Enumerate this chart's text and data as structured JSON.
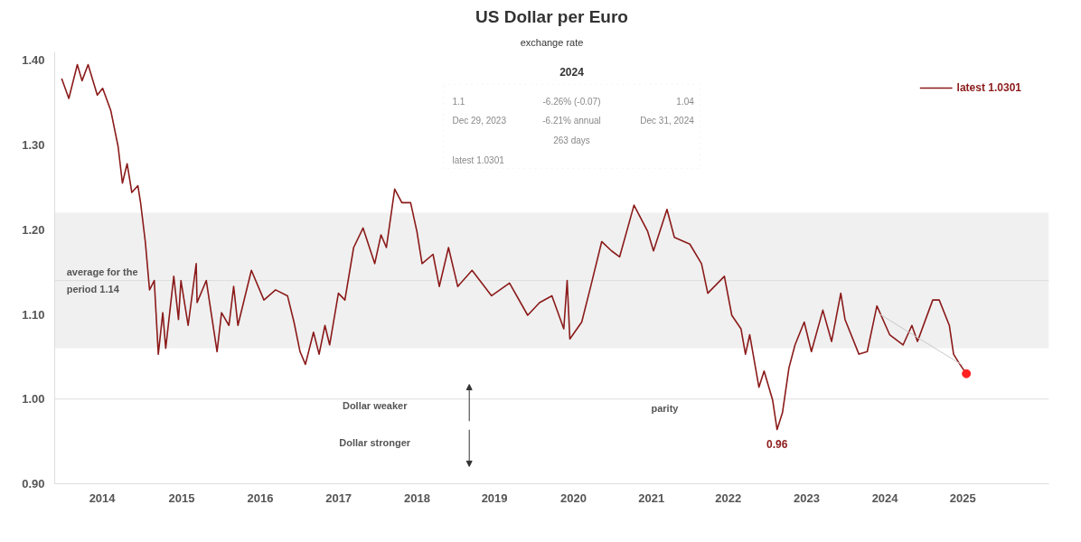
{
  "chart_data": {
    "type": "line",
    "title": "US Dollar per Euro",
    "subtitle": "exchange rate",
    "x": [
      "2014-01-02",
      "2014-02-02",
      "2014-03-12",
      "2014-04-02",
      "2014-04-29",
      "2014-06-09",
      "2014-07-03",
      "2014-08-08",
      "2014-09-10",
      "2014-09-29",
      "2014-10-20",
      "2014-11-10",
      "2014-12-07",
      "2014-12-19",
      "2015-01-09",
      "2015-01-28",
      "2015-02-18",
      "2015-03-08",
      "2015-03-28",
      "2015-04-10",
      "2015-05-16",
      "2015-06-06",
      "2015-06-17",
      "2015-07-19",
      "2015-08-24",
      "2015-08-28",
      "2015-10-08",
      "2015-11-25",
      "2015-12-15",
      "2016-01-17",
      "2016-02-07",
      "2016-02-26",
      "2016-04-26",
      "2016-06-21",
      "2016-08-12",
      "2016-10-04",
      "2016-11-02",
      "2016-11-29",
      "2016-12-23",
      "2017-01-28",
      "2017-02-22",
      "2017-03-20",
      "2017-04-10",
      "2017-05-19",
      "2017-06-17",
      "2017-07-26",
      "2017-09-06",
      "2017-10-28",
      "2017-11-25",
      "2017-12-19",
      "2018-01-25",
      "2018-02-26",
      "2018-04-06",
      "2018-05-04",
      "2018-05-27",
      "2018-07-15",
      "2018-08-12",
      "2018-09-22",
      "2018-11-02",
      "2019-01-05",
      "2019-04-02",
      "2019-06-21",
      "2019-09-10",
      "2019-11-02",
      "2019-12-27",
      "2020-02-18",
      "2020-03-04",
      "2020-03-16",
      "2020-05-08",
      "2020-06-17",
      "2020-08-05",
      "2020-09-18",
      "2020-10-24",
      "2020-12-27",
      "2021-02-26",
      "2021-03-24",
      "2021-05-23",
      "2021-06-25",
      "2021-09-02",
      "2021-10-24",
      "2021-11-21",
      "2022-02-03",
      "2022-03-08",
      "2022-04-18",
      "2022-05-08",
      "2022-05-27",
      "2022-07-07",
      "2022-07-30",
      "2022-09-06",
      "2022-09-26",
      "2022-10-20",
      "2022-11-18",
      "2022-12-15",
      "2023-01-25",
      "2023-02-26",
      "2023-04-18",
      "2023-05-27",
      "2023-07-07",
      "2023-07-26",
      "2023-09-26",
      "2023-11-02",
      "2023-12-15",
      "2024-02-10",
      "2024-04-10",
      "2024-05-19",
      "2024-06-13",
      "2024-08-20",
      "2024-09-18",
      "2024-11-02",
      "2024-11-21",
      "2024-12-19",
      "2025-01-17"
    ],
    "series": [
      {
        "name": "latest 1.0301",
        "color": "#8b1a1a",
        "values": [
          1.378,
          1.355,
          1.395,
          1.376,
          1.395,
          1.359,
          1.367,
          1.341,
          1.298,
          1.255,
          1.278,
          1.244,
          1.252,
          1.232,
          1.186,
          1.129,
          1.14,
          1.053,
          1.102,
          1.06,
          1.145,
          1.094,
          1.14,
          1.087,
          1.16,
          1.114,
          1.14,
          1.056,
          1.102,
          1.087,
          1.133,
          1.087,
          1.152,
          1.117,
          1.129,
          1.122,
          1.091,
          1.056,
          1.041,
          1.079,
          1.053,
          1.087,
          1.064,
          1.125,
          1.117,
          1.179,
          1.202,
          1.16,
          1.194,
          1.179,
          1.248,
          1.232,
          1.232,
          1.198,
          1.16,
          1.171,
          1.133,
          1.179,
          1.133,
          1.152,
          1.122,
          1.137,
          1.099,
          1.114,
          1.122,
          1.083,
          1.14,
          1.071,
          1.091,
          1.133,
          1.186,
          1.175,
          1.168,
          1.229,
          1.198,
          1.175,
          1.224,
          1.191,
          1.183,
          1.16,
          1.125,
          1.145,
          1.099,
          1.083,
          1.053,
          1.076,
          1.014,
          1.033,
          0.999,
          0.964,
          0.984,
          1.037,
          1.064,
          1.091,
          1.056,
          1.105,
          1.068,
          1.125,
          1.094,
          1.053,
          1.056,
          1.11,
          1.076,
          1.064,
          1.087,
          1.068,
          1.117,
          1.117,
          1.087,
          1.053,
          1.041,
          1.03
        ]
      },
      {
        "type": "line",
        "color": "#c8c8c8",
        "x": [
          "2023-12-29",
          "2024-12-31"
        ],
        "values": [
          1.1,
          1.04
        ]
      },
      {
        "type": "scatter",
        "marker": "circle",
        "color": "#ff2020",
        "x": [
          "2025-01-17"
        ],
        "values": [
          1.03
        ]
      }
    ],
    "xlim": [
      "2013-12-01",
      "2026-01-20"
    ],
    "xticks": [
      {
        "value": "2014-07-01",
        "label": "2014"
      },
      {
        "value": "2015-06-20",
        "label": "2015"
      },
      {
        "value": "2016-06-05",
        "label": "2016"
      },
      {
        "value": "2017-05-20",
        "label": "2017"
      },
      {
        "value": "2018-05-05",
        "label": "2018"
      },
      {
        "value": "2019-04-15",
        "label": "2019"
      },
      {
        "value": "2020-04-01",
        "label": "2020"
      },
      {
        "value": "2021-03-15",
        "label": "2021"
      },
      {
        "value": "2022-02-20",
        "label": "2022"
      },
      {
        "value": "2023-02-05",
        "label": "2023"
      },
      {
        "value": "2024-01-20",
        "label": "2024"
      },
      {
        "value": "2025-01-01",
        "label": "2025"
      }
    ],
    "ylim": [
      0.9,
      1.41
    ],
    "yticks": [
      {
        "value": 0.9,
        "label": "0.90"
      },
      {
        "value": 1.0,
        "label": "1.00"
      },
      {
        "value": 1.1,
        "label": "1.10"
      },
      {
        "value": 1.2,
        "label": "1.20"
      },
      {
        "value": 1.3,
        "label": "1.30"
      },
      {
        "value": 1.4,
        "label": "1.40"
      }
    ],
    "bands": [
      {
        "axis": "y",
        "from": 1.06,
        "to": 1.22,
        "color": "#f0f0f0"
      }
    ],
    "ref_lines": [
      {
        "axis": "y",
        "value": 1.14,
        "label": "average for the period 1.14",
        "color": "#dddddd"
      },
      {
        "axis": "y",
        "value": 1.0,
        "label": "parity",
        "color": "#dddddd"
      }
    ],
    "annotations": [
      {
        "text": "0.96",
        "x": "2022-09-26",
        "y": 0.96
      },
      "Dollar weaker",
      "Dollar stronger",
      "2024",
      "1.1",
      "-6.26% (-0.07)",
      "1.04",
      "Dec 29, 2023",
      "-6.21% annual",
      "Dec 31, 2024",
      "263 days",
      "latest 1.0301"
    ],
    "legend": "top right",
    "grid": false,
    "marker": "none",
    "line_style": "solid"
  }
}
